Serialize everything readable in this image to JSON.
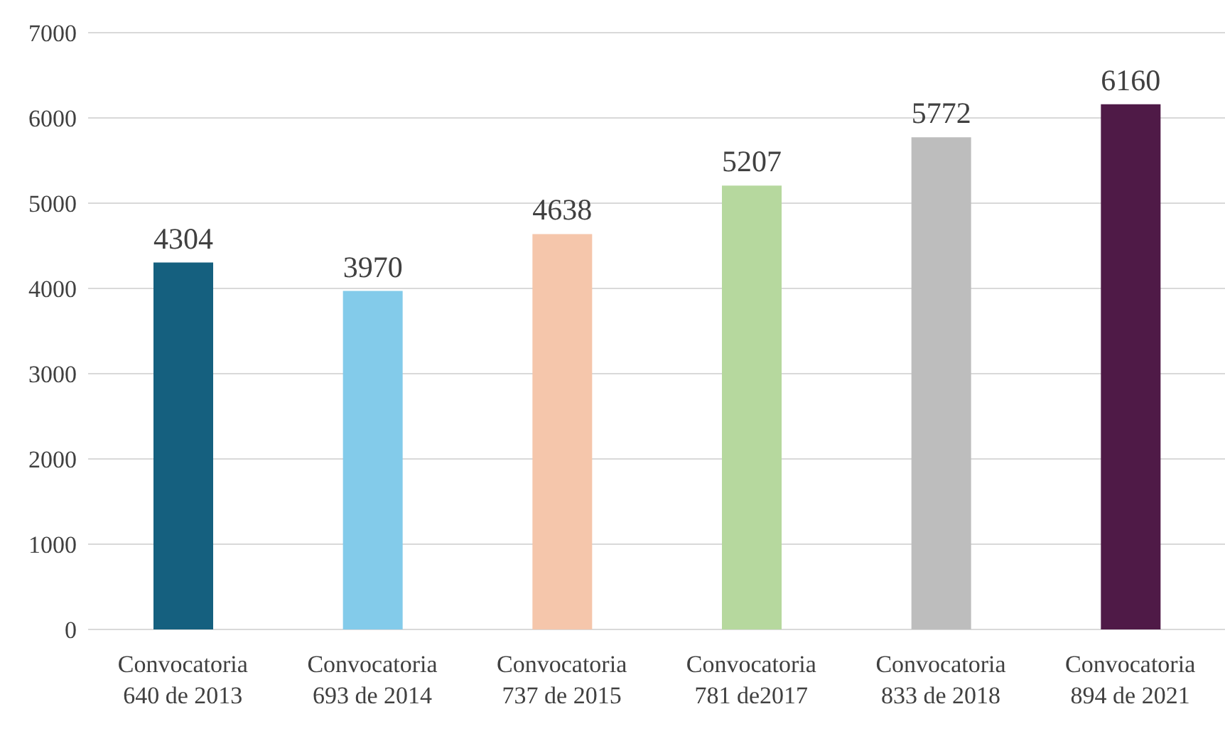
{
  "chart_data": {
    "type": "bar",
    "categories": [
      "Convocatoria 640 de 2013",
      "Convocatoria 693 de 2014",
      "Convocatoria 737 de 2015",
      "Convocatoria 781 de2017",
      "Convocatoria 833 de 2018",
      "Convocatoria 894 de 2021"
    ],
    "values": [
      4304,
      3970,
      4638,
      5207,
      5772,
      6160
    ],
    "colors": [
      "#15607f",
      "#83cbea",
      "#f5c6ab",
      "#b6d89e",
      "#bdbdbd",
      "#4f1a47"
    ],
    "ylim": [
      0,
      7000
    ],
    "yticks": [
      0,
      1000,
      2000,
      3000,
      4000,
      5000,
      6000,
      7000
    ],
    "grid": "y",
    "data_labels": true
  }
}
